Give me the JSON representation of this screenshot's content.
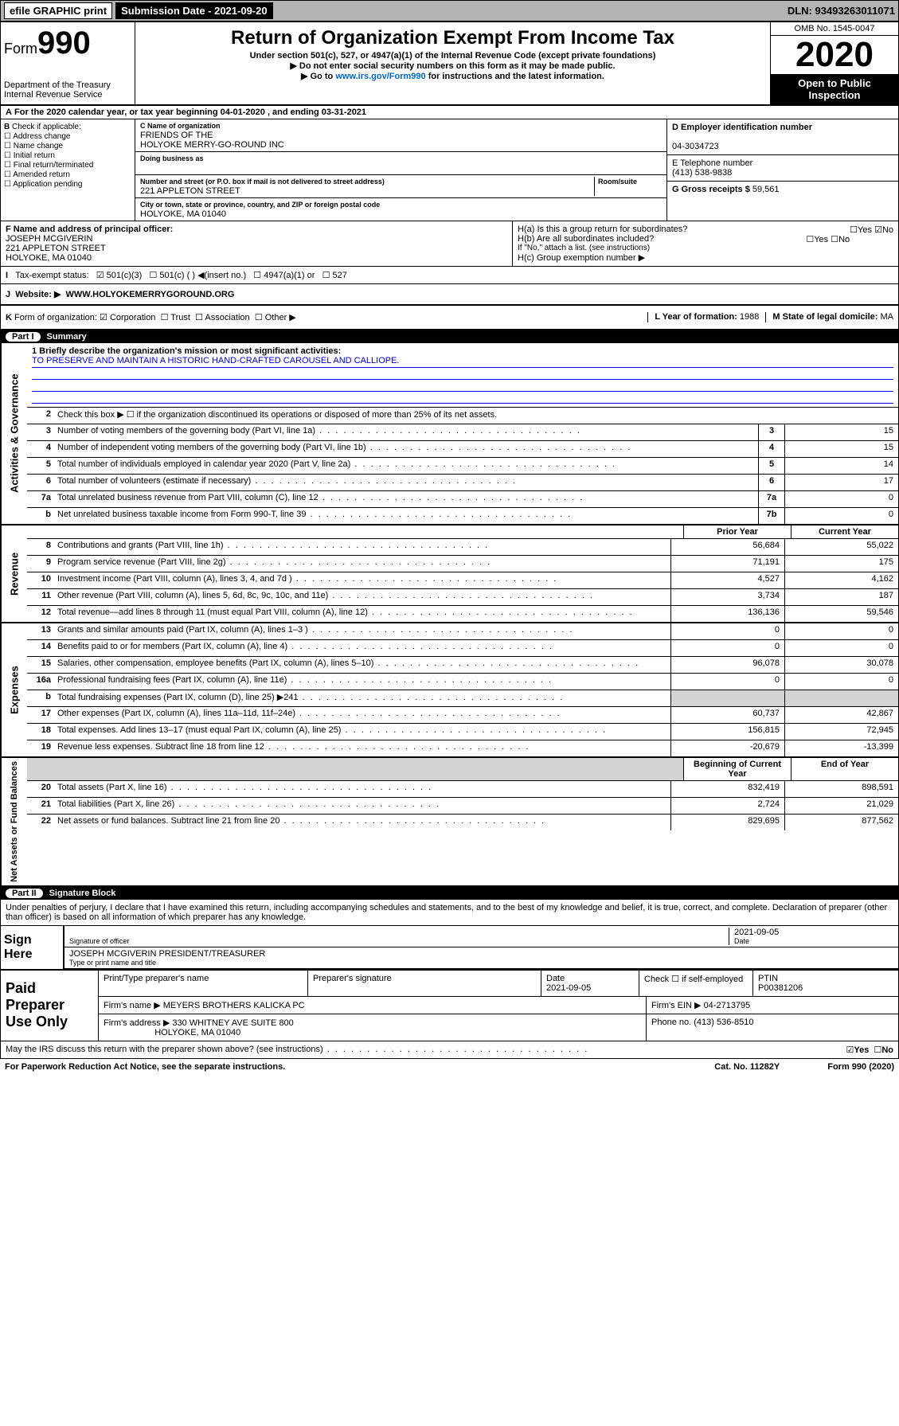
{
  "topbar": {
    "efile": "efile GRAPHIC print",
    "submission_label": "Submission Date - 2021-09-20",
    "dln": "DLN: 93493263011071"
  },
  "header": {
    "form_prefix": "Form",
    "form_number": "990",
    "dept": "Department of the Treasury",
    "irs": "Internal Revenue Service",
    "title": "Return of Organization Exempt From Income Tax",
    "subtitle": "Under section 501(c), 527, or 4947(a)(1) of the Internal Revenue Code (except private foundations)",
    "note1": "Do not enter social security numbers on this form as it may be made public.",
    "note2": "Go to www.irs.gov/Form990 for instructions and the latest information.",
    "link": "www.irs.gov/Form990",
    "omb": "OMB No. 1545-0047",
    "year": "2020",
    "open": "Open to Public Inspection"
  },
  "periodA": "For the 2020 calendar year, or tax year beginning 04-01-2020   , and ending 03-31-2021",
  "boxB": {
    "label": "Check if applicable:",
    "opts": [
      "Address change",
      "Name change",
      "Initial return",
      "Final return/terminated",
      "Amended return",
      "Application pending"
    ]
  },
  "boxC": {
    "name_label": "C Name of organization",
    "name": "FRIENDS OF THE\nHOLYOKE MERRY-GO-ROUND INC",
    "dba_label": "Doing business as",
    "addr_label": "Number and street (or P.O. box if mail is not delivered to street address)",
    "room_label": "Room/suite",
    "street": "221 APPLETON STREET",
    "city_label": "City or town, state or province, country, and ZIP or foreign postal code",
    "city": "HOLYOKE, MA  01040"
  },
  "boxD": {
    "label": "D Employer identification number",
    "val": "04-3034723"
  },
  "boxE": {
    "label": "E Telephone number",
    "val": "(413) 538-9838"
  },
  "boxG": {
    "label": "G Gross receipts $",
    "val": "59,561"
  },
  "boxF": {
    "label": "F  Name and address of principal officer:",
    "name": "JOSEPH MCGIVERIN",
    "street": "221 APPLETON STREET",
    "city": "HOLYOKE, MA  01040"
  },
  "boxH": {
    "a": "H(a)  Is this a group return for subordinates?",
    "b": "H(b)  Are all subordinates included?",
    "note": "If \"No,\" attach a list. (see instructions)",
    "c": "H(c)  Group exemption number ▶"
  },
  "boxI": {
    "label": "Tax-exempt status:",
    "opt1": "501(c)(3)",
    "opt2": "501(c) (  ) ◀(insert no.)",
    "opt3": "4947(a)(1) or",
    "opt4": "527"
  },
  "boxJ": {
    "label": "Website: ▶",
    "val": "WWW.HOLYOKEMERRYGOROUND.ORG"
  },
  "boxK": {
    "label": "Form of organization:",
    "corp": "Corporation",
    "trust": "Trust",
    "assoc": "Association",
    "other": "Other ▶"
  },
  "boxL": {
    "label": "L Year of formation:",
    "val": "1988"
  },
  "boxM": {
    "label": "M State of legal domicile:",
    "val": "MA"
  },
  "part1": {
    "num": "Part I",
    "title": "Summary"
  },
  "summary": {
    "l1_label": "1  Briefly describe the organization's mission or most significant activities:",
    "l1_text": "TO PRESERVE AND MAINTAIN A HISTORIC HAND-CRAFTED CAROUSEL AND CALLIOPE.",
    "l2": "Check this box ▶ ☐  if the organization discontinued its operations or disposed of more than 25% of its net assets.",
    "lines_gov": [
      {
        "n": "3",
        "d": "Number of voting members of the governing body (Part VI, line 1a)",
        "b": "3",
        "v": "15"
      },
      {
        "n": "4",
        "d": "Number of independent voting members of the governing body (Part VI, line 1b)",
        "b": "4",
        "v": "15"
      },
      {
        "n": "5",
        "d": "Total number of individuals employed in calendar year 2020 (Part V, line 2a)",
        "b": "5",
        "v": "14"
      },
      {
        "n": "6",
        "d": "Total number of volunteers (estimate if necessary)",
        "b": "6",
        "v": "17"
      },
      {
        "n": "7a",
        "d": "Total unrelated business revenue from Part VIII, column (C), line 12",
        "b": "7a",
        "v": "0"
      },
      {
        "n": "b",
        "d": "Net unrelated business taxable income from Form 990-T, line 39",
        "b": "7b",
        "v": "0"
      }
    ],
    "col_hdr_prior": "Prior Year",
    "col_hdr_current": "Current Year",
    "revenue": [
      {
        "n": "8",
        "d": "Contributions and grants (Part VIII, line 1h)",
        "p": "56,684",
        "c": "55,022"
      },
      {
        "n": "9",
        "d": "Program service revenue (Part VIII, line 2g)",
        "p": "71,191",
        "c": "175"
      },
      {
        "n": "10",
        "d": "Investment income (Part VIII, column (A), lines 3, 4, and 7d )",
        "p": "4,527",
        "c": "4,162"
      },
      {
        "n": "11",
        "d": "Other revenue (Part VIII, column (A), lines 5, 6d, 8c, 9c, 10c, and 11e)",
        "p": "3,734",
        "c": "187"
      },
      {
        "n": "12",
        "d": "Total revenue—add lines 8 through 11 (must equal Part VIII, column (A), line 12)",
        "p": "136,136",
        "c": "59,546"
      }
    ],
    "expenses": [
      {
        "n": "13",
        "d": "Grants and similar amounts paid (Part IX, column (A), lines 1–3 )",
        "p": "0",
        "c": "0"
      },
      {
        "n": "14",
        "d": "Benefits paid to or for members (Part IX, column (A), line 4)",
        "p": "0",
        "c": "0"
      },
      {
        "n": "15",
        "d": "Salaries, other compensation, employee benefits (Part IX, column (A), lines 5–10)",
        "p": "96,078",
        "c": "30,078"
      },
      {
        "n": "16a",
        "d": "Professional fundraising fees (Part IX, column (A), line 11e)",
        "p": "0",
        "c": "0"
      },
      {
        "n": "b",
        "d": "Total fundraising expenses (Part IX, column (D), line 25) ▶241",
        "p": "",
        "c": "",
        "gray": true
      },
      {
        "n": "17",
        "d": "Other expenses (Part IX, column (A), lines 11a–11d, 11f–24e)",
        "p": "60,737",
        "c": "42,867"
      },
      {
        "n": "18",
        "d": "Total expenses. Add lines 13–17 (must equal Part IX, column (A), line 25)",
        "p": "156,815",
        "c": "72,945"
      },
      {
        "n": "19",
        "d": "Revenue less expenses. Subtract line 18 from line 12",
        "p": "-20,679",
        "c": "-13,399"
      }
    ],
    "col_hdr_begin": "Beginning of Current Year",
    "col_hdr_end": "End of Year",
    "netassets": [
      {
        "n": "20",
        "d": "Total assets (Part X, line 16)",
        "p": "832,419",
        "c": "898,591"
      },
      {
        "n": "21",
        "d": "Total liabilities (Part X, line 26)",
        "p": "2,724",
        "c": "21,029"
      },
      {
        "n": "22",
        "d": "Net assets or fund balances. Subtract line 21 from line 20",
        "p": "829,695",
        "c": "877,562"
      }
    ]
  },
  "part2": {
    "num": "Part II",
    "title": "Signature Block"
  },
  "sig": {
    "text": "Under penalties of perjury, I declare that I have examined this return, including accompanying schedules and statements, and to the best of my knowledge and belief, it is true, correct, and complete. Declaration of preparer (other than officer) is based on all information of which preparer has any knowledge.",
    "sign_here": "Sign Here",
    "sig_officer": "Signature of officer",
    "date": "2021-09-05",
    "date_label": "Date",
    "officer": "JOSEPH MCGIVERIN  PRESIDENT/TREASURER",
    "officer_label": "Type or print name and title"
  },
  "paid": {
    "label": "Paid Preparer Use Only",
    "h1": "Print/Type preparer's name",
    "h2": "Preparer's signature",
    "h3": "Date",
    "h4": "Check ☐ if self-employed",
    "h5": "PTIN",
    "date": "2021-09-05",
    "ptin": "P00381206",
    "firm_name_l": "Firm's name   ▶",
    "firm_name": "MEYERS BROTHERS KALICKA PC",
    "firm_ein_l": "Firm's EIN ▶",
    "firm_ein": "04-2713795",
    "firm_addr_l": "Firm's address ▶",
    "firm_addr": "330 WHITNEY AVE SUITE 800",
    "firm_city": "HOLYOKE, MA  01040",
    "phone_l": "Phone no.",
    "phone": "(413) 536-8510"
  },
  "discuss": "May the IRS discuss this return with the preparer shown above? (see instructions)",
  "bottom": {
    "pra": "For Paperwork Reduction Act Notice, see the separate instructions.",
    "cat": "Cat. No. 11282Y",
    "form": "Form 990 (2020)"
  }
}
